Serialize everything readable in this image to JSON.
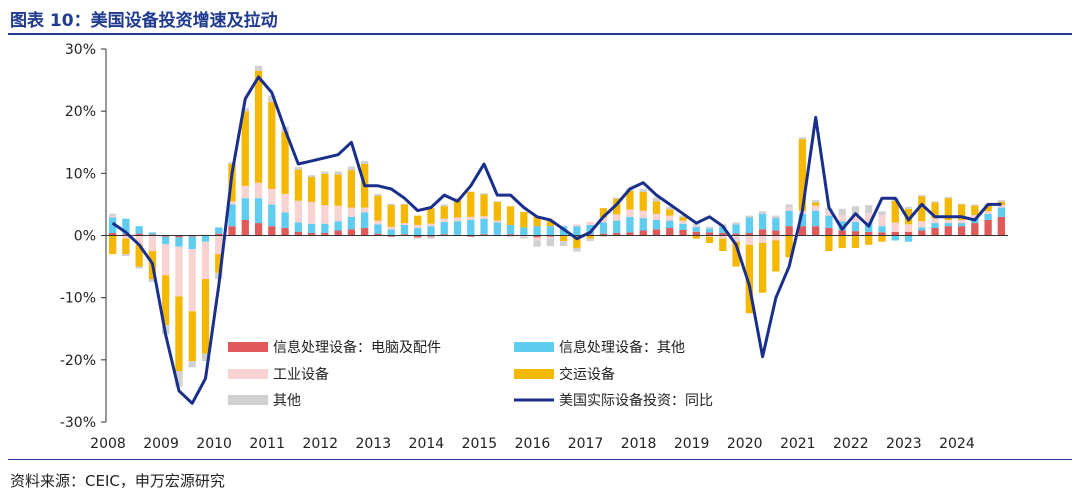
{
  "title": "图表 10：美国设备投资增速及拉动",
  "source": "资料来源：CEIC，申万宏源研究",
  "chart_data": {
    "type": "bar",
    "stacked": true,
    "y_unit": "%",
    "ylim": [
      -30,
      30
    ],
    "y_ticks": [
      30,
      20,
      10,
      0,
      -10,
      -20,
      -30
    ],
    "x_labels": [
      "2008",
      "2009",
      "2010",
      "2011",
      "2012",
      "2013",
      "2014",
      "2015",
      "2016",
      "2017",
      "2018",
      "2019",
      "2020",
      "2021",
      "2022",
      "2023",
      "2024"
    ],
    "x_start_year": 2008,
    "quarters_per_year": 4,
    "grid": false,
    "legend_position": "inside-bottom-center",
    "colors": {
      "computers": "#e05a5a",
      "info_other": "#5fcdf0",
      "industrial": "#f9d2d2",
      "transport": "#f5b800",
      "other": "#d0d0d0",
      "total": "#1a2f8a"
    },
    "series": [
      {
        "key": "computers",
        "name": "信息处理设备：电脑及配件",
        "kind": "bar",
        "values": [
          0.4,
          0.2,
          0.3,
          0.2,
          -0.2,
          -0.3,
          -0.2,
          0.1,
          0.3,
          1.5,
          2.5,
          2.0,
          1.5,
          1.2,
          0.6,
          0.4,
          0.4,
          0.8,
          1.0,
          1.2,
          0.3,
          -0.2,
          0.2,
          -0.3,
          -0.2,
          0.2,
          0.1,
          -0.2,
          0.2,
          0.1,
          0.2,
          0.1,
          -0.3,
          -0.2,
          -0.1,
          0.0,
          0.2,
          0.3,
          0.4,
          0.5,
          0.8,
          1.0,
          1.2,
          0.9,
          0.6,
          0.5,
          0.4,
          0.3,
          0.4,
          1.0,
          0.8,
          1.5,
          1.5,
          1.5,
          1.2,
          0.8,
          0.7,
          0.6,
          0.5,
          0.6,
          0.6,
          0.8,
          1.2,
          1.5,
          1.5,
          2.0,
          2.5,
          3.0
        ]
      },
      {
        "key": "info_other",
        "name": "信息处理设备：其他",
        "kind": "bar",
        "values": [
          2.5,
          2.5,
          1.2,
          0.3,
          -1.2,
          -1.5,
          -2.0,
          -1.0,
          1.0,
          3.5,
          3.5,
          4.0,
          3.5,
          2.5,
          1.5,
          1.5,
          1.5,
          1.5,
          2.0,
          2.5,
          1.5,
          1.0,
          1.5,
          1.2,
          1.5,
          2.0,
          2.2,
          2.5,
          2.5,
          2.0,
          1.5,
          1.2,
          1.5,
          1.5,
          1.5,
          1.5,
          1.5,
          1.8,
          2.0,
          2.5,
          2.0,
          1.5,
          1.2,
          1.0,
          0.8,
          0.6,
          1.0,
          1.5,
          2.5,
          2.5,
          2.0,
          2.5,
          2.0,
          2.5,
          2.0,
          1.5,
          1.5,
          1.5,
          1.0,
          -0.8,
          -1.0,
          0.5,
          0.8,
          0.5,
          0.5,
          0.8,
          1.0,
          1.5
        ]
      },
      {
        "key": "industrial",
        "name": "工业设备",
        "kind": "bar",
        "values": [
          0.3,
          -0.5,
          -1.5,
          -2.5,
          -5.0,
          -8.0,
          -10.0,
          -6.0,
          -3.0,
          0.5,
          2.0,
          2.5,
          2.5,
          3.0,
          3.5,
          3.5,
          3.0,
          2.5,
          1.5,
          0.8,
          0.6,
          0.4,
          0.3,
          0.5,
          0.4,
          0.5,
          0.6,
          0.5,
          0.4,
          0.3,
          -0.2,
          -0.3,
          -0.5,
          -0.3,
          0.1,
          0.3,
          0.5,
          0.8,
          1.0,
          1.2,
          1.2,
          1.0,
          0.8,
          0.5,
          0.2,
          -0.2,
          -0.5,
          -1.0,
          -1.5,
          -1.2,
          -0.8,
          0.5,
          0.5,
          0.8,
          0.7,
          1.0,
          1.0,
          1.5,
          1.8,
          1.5,
          1.2,
          1.0,
          0.8,
          0.5,
          0.5,
          0.5,
          0.4,
          0.4
        ]
      },
      {
        "key": "transport",
        "name": "交运设备",
        "kind": "bar",
        "values": [
          -3.0,
          -2.5,
          -3.5,
          -4.5,
          -8.0,
          -12.0,
          -8.0,
          -12.0,
          -3.0,
          6.0,
          12.0,
          18.0,
          14.0,
          10.0,
          5.0,
          4.0,
          5.0,
          5.0,
          6.0,
          7.0,
          4.0,
          3.5,
          3.0,
          1.5,
          2.5,
          2.0,
          3.0,
          4.0,
          3.5,
          3.0,
          3.0,
          2.5,
          1.5,
          0.8,
          -0.8,
          -2.0,
          -0.5,
          1.5,
          2.5,
          3.0,
          3.0,
          2.0,
          1.0,
          0.5,
          -0.5,
          -1.0,
          -2.0,
          -4.0,
          -11.0,
          -8.0,
          -5.0,
          -3.5,
          11.5,
          0.5,
          -2.5,
          -2.0,
          -2.0,
          -1.5,
          -1.0,
          3.5,
          2.5,
          4.0,
          2.5,
          3.5,
          2.5,
          1.5,
          1.0,
          0.5
        ]
      },
      {
        "key": "other",
        "name": "其他",
        "kind": "bar",
        "values": [
          0.3,
          -0.3,
          -0.3,
          -0.5,
          -1.5,
          -2.5,
          -1.0,
          -1.2,
          -1.0,
          0.3,
          0.5,
          0.8,
          1.0,
          0.8,
          0.4,
          0.3,
          0.4,
          0.5,
          0.6,
          0.5,
          0.3,
          0.2,
          0.1,
          -0.2,
          -0.3,
          0.3,
          0.2,
          0.1,
          0.2,
          0.1,
          -0.1,
          -0.2,
          -1.0,
          -1.2,
          -0.8,
          -0.6,
          -0.4,
          -0.2,
          0.2,
          0.4,
          0.5,
          0.6,
          0.4,
          0.3,
          0.2,
          0.3,
          0.4,
          0.3,
          0.3,
          0.4,
          0.4,
          0.5,
          0.3,
          0.4,
          0.5,
          1.0,
          1.5,
          1.3,
          0.6,
          0.4,
          0.3,
          0.2,
          0.2,
          0.2,
          0.1,
          0.2,
          0.2,
          0.3
        ]
      },
      {
        "key": "total",
        "name": "美国实际设备投资：同比",
        "kind": "line",
        "values": [
          2.0,
          0.5,
          -1.5,
          -4.5,
          -16.0,
          -25.0,
          -27.0,
          -23.0,
          -8.0,
          10.0,
          22.0,
          25.5,
          23.0,
          17.0,
          11.5,
          12.0,
          12.5,
          13.0,
          15.0,
          8.0,
          8.0,
          7.5,
          6.0,
          4.0,
          4.5,
          6.5,
          5.5,
          8.0,
          11.5,
          6.5,
          6.5,
          4.5,
          3.0,
          2.5,
          1.0,
          -0.5,
          0.5,
          3.0,
          5.0,
          7.5,
          8.5,
          6.5,
          5.0,
          3.5,
          2.0,
          3.0,
          1.5,
          -1.5,
          -8.0,
          -19.5,
          -10.0,
          -5.0,
          4.0,
          19.0,
          4.5,
          1.0,
          3.5,
          1.5,
          6.0,
          6.0,
          2.5,
          5.0,
          3.0,
          3.0,
          3.0,
          2.5,
          5.0,
          5.0
        ]
      }
    ]
  }
}
